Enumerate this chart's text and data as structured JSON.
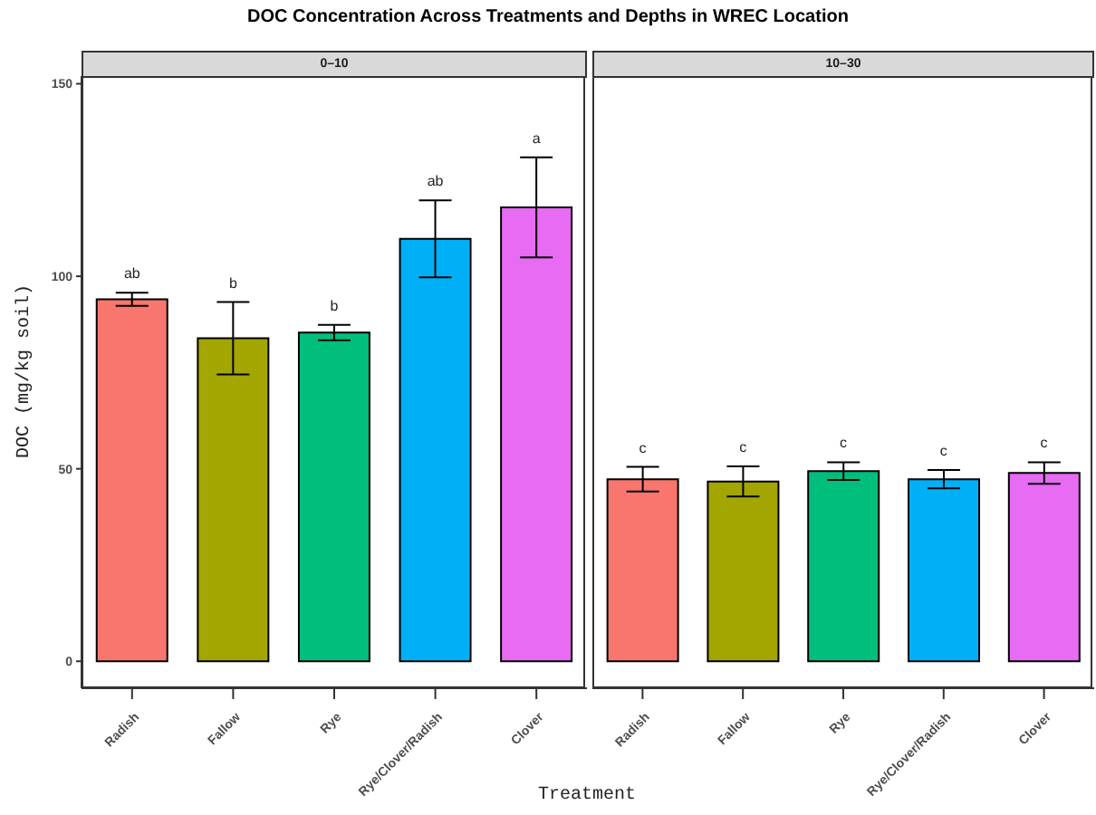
{
  "chart_data": [
    {
      "type": "bar",
      "title": "DOC Concentration Across Treatments and Depths in WREC Location",
      "subtitle": "0–10",
      "xlabel": "Treatment",
      "ylabel": "DOC (mg/kg soil)",
      "categories": [
        "Radish",
        "Fallow",
        "Rye",
        "Rye/Clover/Radish",
        "Clover"
      ],
      "values": [
        94.0,
        83.9,
        85.4,
        109.7,
        117.9
      ],
      "colors": [
        "#f8766d",
        "#a3a500",
        "#00bf7d",
        "#00b0f6",
        "#e76bf3"
      ],
      "errors": [
        1.7,
        9.4,
        2.0,
        10.0,
        13.0
      ],
      "ylim": [
        -7,
        152
      ],
      "yticks": [
        0,
        50,
        100,
        150
      ],
      "grid": false,
      "legend": false,
      "annotations": [
        "ab",
        "b",
        "b",
        "ab",
        "a"
      ]
    },
    {
      "type": "bar",
      "subtitle": "10–30",
      "categories": [
        "Radish",
        "Fallow",
        "Rye",
        "Rye/Clover/Radish",
        "Clover"
      ],
      "values": [
        47.3,
        46.7,
        49.4,
        47.3,
        48.9
      ],
      "colors": [
        "#f8766d",
        "#a3a500",
        "#00bf7d",
        "#00b0f6",
        "#e76bf3"
      ],
      "errors": [
        3.2,
        3.9,
        2.3,
        2.4,
        2.8
      ],
      "ylim": [
        -7,
        152
      ],
      "yticks": [
        0,
        50,
        100,
        150
      ],
      "tick_labels": "x",
      "grid": false,
      "legend": false,
      "annotations": [
        "c",
        "c",
        "c",
        "c",
        "c"
      ]
    }
  ]
}
